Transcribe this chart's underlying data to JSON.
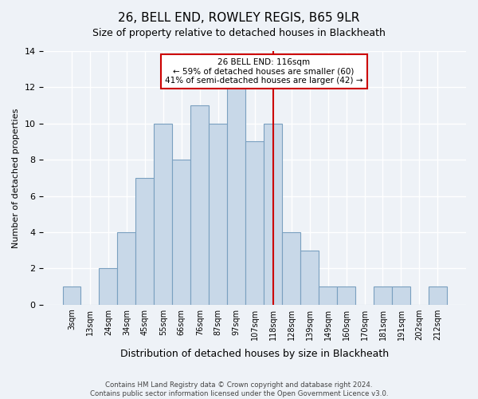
{
  "title": "26, BELL END, ROWLEY REGIS, B65 9LR",
  "subtitle": "Size of property relative to detached houses in Blackheath",
  "xlabel": "Distribution of detached houses by size in Blackheath",
  "ylabel": "Number of detached properties",
  "bar_labels": [
    "3sqm",
    "13sqm",
    "24sqm",
    "34sqm",
    "45sqm",
    "55sqm",
    "66sqm",
    "76sqm",
    "87sqm",
    "97sqm",
    "107sqm",
    "118sqm",
    "128sqm",
    "139sqm",
    "149sqm",
    "160sqm",
    "170sqm",
    "181sqm",
    "191sqm",
    "202sqm",
    "212sqm"
  ],
  "bar_heights": [
    1,
    0,
    2,
    4,
    7,
    10,
    8,
    11,
    10,
    12,
    9,
    10,
    4,
    3,
    1,
    1,
    0,
    1,
    1,
    0,
    1
  ],
  "bar_color": "#c8d8e8",
  "bar_edge_color": "#7aa0c0",
  "ylim": [
    0,
    14
  ],
  "yticks": [
    0,
    2,
    4,
    6,
    8,
    10,
    12,
    14
  ],
  "property_line_x": 11,
  "property_line_color": "#cc0000",
  "annotation_line1": "26 BELL END: 116sqm",
  "annotation_line2": "← 59% of detached houses are smaller (60)",
  "annotation_line3": "41% of semi-detached houses are larger (42) →",
  "annotation_box_color": "#cc0000",
  "footer_text": "Contains HM Land Registry data © Crown copyright and database right 2024.\nContains public sector information licensed under the Open Government Licence v3.0.",
  "background_color": "#eef2f7",
  "grid_color": "#ffffff"
}
